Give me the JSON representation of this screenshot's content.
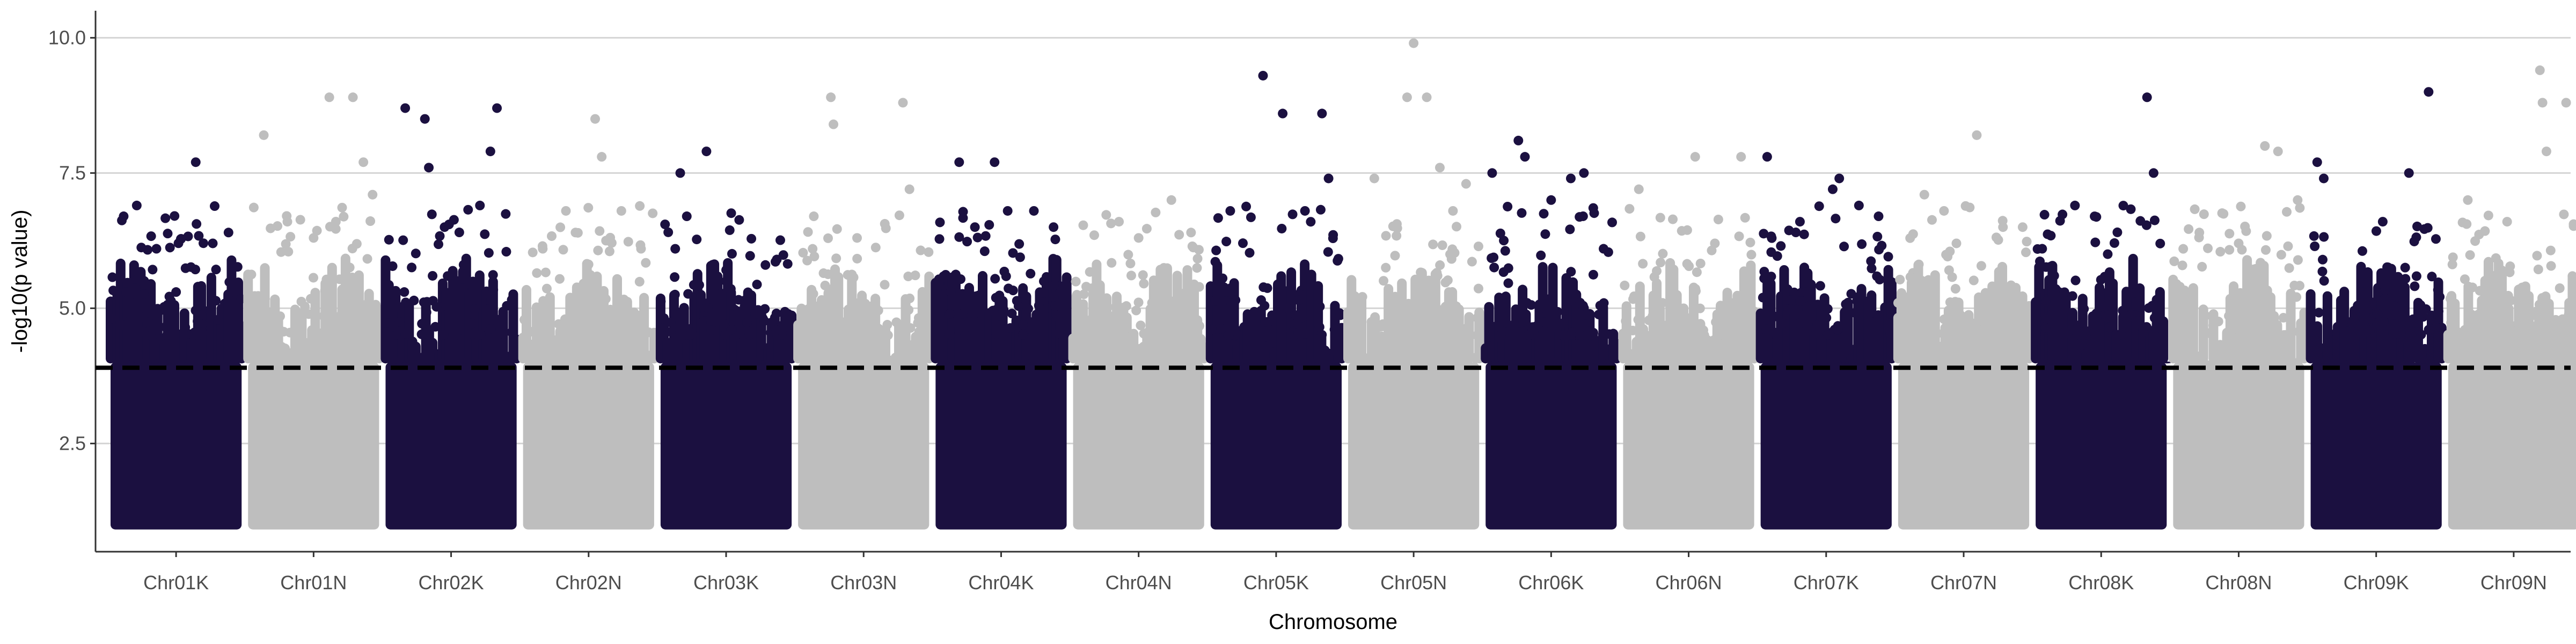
{
  "chart_data": {
    "type": "scatter",
    "subtype": "manhattan",
    "title": "",
    "xlabel": "Chromosome",
    "ylabel": "-log10(p value)",
    "ylim": [
      0.5,
      10.5
    ],
    "yticks": [
      2.5,
      5.0,
      7.5,
      10.0
    ],
    "ytick_labels": [
      "2.5",
      "5.0",
      "7.5",
      "10.0"
    ],
    "grid": "horizontal major",
    "legend": "none",
    "threshold": {
      "value": 3.9,
      "style": "dashed",
      "color": "#000000"
    },
    "colors": {
      "odd": "#1b1040",
      "even": "#bebebe"
    },
    "categories": [
      "Chr01K",
      "Chr01N",
      "Chr02K",
      "Chr02N",
      "Chr03K",
      "Chr03N",
      "Chr04K",
      "Chr04N",
      "Chr05K",
      "Chr05N",
      "Chr06K",
      "Chr06N",
      "Chr07K",
      "Chr07N",
      "Chr08K",
      "Chr08N",
      "Chr09K",
      "Chr09N"
    ],
    "series": [
      {
        "category": "Chr01K",
        "color": "#1b1040",
        "top_points": [
          [
            0.1,
            6.7
          ],
          [
            0.2,
            6.9
          ],
          [
            0.35,
            6.1
          ],
          [
            0.5,
            5.3
          ],
          [
            0.65,
            7.7
          ],
          [
            0.78,
            6.2
          ],
          [
            0.9,
            6.4
          ]
        ]
      },
      {
        "category": "Chr01N",
        "color": "#bebebe",
        "top_points": [
          [
            0.12,
            8.2
          ],
          [
            0.3,
            6.6
          ],
          [
            0.5,
            6.3
          ],
          [
            0.62,
            8.9
          ],
          [
            0.8,
            8.9
          ],
          [
            0.88,
            7.7
          ],
          [
            0.95,
            7.1
          ]
        ]
      },
      {
        "category": "Chr02K",
        "color": "#1b1040",
        "top_points": [
          [
            0.15,
            8.7
          ],
          [
            0.3,
            8.5
          ],
          [
            0.33,
            7.6
          ],
          [
            0.45,
            6.5
          ],
          [
            0.72,
            6.9
          ],
          [
            0.8,
            7.9
          ],
          [
            0.85,
            8.7
          ]
        ]
      },
      {
        "category": "Chr02N",
        "color": "#bebebe",
        "top_points": [
          [
            0.15,
            6.1
          ],
          [
            0.4,
            6.4
          ],
          [
            0.55,
            8.5
          ],
          [
            0.6,
            7.8
          ],
          [
            0.75,
            6.8
          ],
          [
            0.9,
            6.1
          ]
        ]
      },
      {
        "category": "Chr03K",
        "color": "#1b1040",
        "top_points": [
          [
            0.15,
            7.5
          ],
          [
            0.35,
            7.9
          ],
          [
            0.2,
            6.7
          ],
          [
            0.5,
            5.5
          ],
          [
            0.8,
            5.8
          ]
        ]
      },
      {
        "category": "Chr03N",
        "color": "#bebebe",
        "top_points": [
          [
            0.12,
            6.7
          ],
          [
            0.25,
            8.9
          ],
          [
            0.27,
            8.4
          ],
          [
            0.45,
            6.3
          ],
          [
            0.8,
            8.8
          ],
          [
            0.85,
            7.2
          ]
        ]
      },
      {
        "category": "Chr04K",
        "color": "#1b1040",
        "top_points": [
          [
            0.18,
            7.7
          ],
          [
            0.3,
            6.5
          ],
          [
            0.45,
            7.7
          ],
          [
            0.55,
            6.8
          ],
          [
            0.75,
            6.8
          ],
          [
            0.9,
            6.5
          ]
        ]
      },
      {
        "category": "Chr04N",
        "color": "#bebebe",
        "top_points": [
          [
            0.1,
            5.4
          ],
          [
            0.35,
            6.6
          ],
          [
            0.5,
            6.3
          ],
          [
            0.75,
            7.0
          ],
          [
            0.9,
            6.4
          ]
        ]
      },
      {
        "category": "Chr05K",
        "color": "#1b1040",
        "top_points": [
          [
            0.15,
            6.8
          ],
          [
            0.4,
            9.3
          ],
          [
            0.55,
            8.6
          ],
          [
            0.72,
            6.8
          ],
          [
            0.85,
            8.6
          ],
          [
            0.9,
            7.4
          ]
        ]
      },
      {
        "category": "Chr05N",
        "color": "#bebebe",
        "top_points": [
          [
            0.2,
            7.4
          ],
          [
            0.5,
            9.9
          ],
          [
            0.45,
            8.9
          ],
          [
            0.6,
            8.9
          ],
          [
            0.7,
            7.6
          ],
          [
            0.8,
            6.8
          ],
          [
            0.9,
            7.3
          ]
        ]
      },
      {
        "category": "Chr06K",
        "color": "#1b1040",
        "top_points": [
          [
            0.05,
            7.5
          ],
          [
            0.25,
            8.1
          ],
          [
            0.3,
            7.8
          ],
          [
            0.5,
            7.0
          ],
          [
            0.65,
            7.4
          ],
          [
            0.75,
            7.5
          ],
          [
            0.9,
            6.1
          ]
        ]
      },
      {
        "category": "Chr06N",
        "color": "#bebebe",
        "top_points": [
          [
            0.12,
            7.2
          ],
          [
            0.3,
            5.1
          ],
          [
            0.55,
            7.8
          ],
          [
            0.7,
            6.2
          ],
          [
            0.9,
            7.8
          ]
        ]
      },
      {
        "category": "Chr07K",
        "color": "#1b1040",
        "top_points": [
          [
            0.05,
            7.8
          ],
          [
            0.3,
            6.6
          ],
          [
            0.55,
            7.2
          ],
          [
            0.6,
            7.4
          ],
          [
            0.75,
            6.9
          ],
          [
            0.9,
            6.7
          ]
        ]
      },
      {
        "category": "Chr07N",
        "color": "#bebebe",
        "top_points": [
          [
            0.2,
            7.1
          ],
          [
            0.35,
            6.8
          ],
          [
            0.6,
            8.2
          ],
          [
            0.8,
            6.5
          ],
          [
            0.95,
            6.5
          ]
        ]
      },
      {
        "category": "Chr08K",
        "color": "#1b1040",
        "top_points": [
          [
            0.05,
            6.1
          ],
          [
            0.3,
            6.9
          ],
          [
            0.55,
            6.0
          ],
          [
            0.85,
            8.9
          ],
          [
            0.9,
            7.5
          ]
        ]
      },
      {
        "category": "Chr08N",
        "color": "#bebebe",
        "top_points": [
          [
            0.2,
            6.4
          ],
          [
            0.5,
            6.2
          ],
          [
            0.7,
            8.0
          ],
          [
            0.8,
            7.9
          ],
          [
            0.95,
            7.0
          ]
        ]
      },
      {
        "category": "Chr09K",
        "color": "#1b1040",
        "top_points": [
          [
            0.05,
            7.7
          ],
          [
            0.1,
            7.4
          ],
          [
            0.55,
            6.6
          ],
          [
            0.75,
            7.5
          ],
          [
            0.9,
            9.0
          ]
        ]
      },
      {
        "category": "Chr09N",
        "color": "#bebebe",
        "top_points": [
          [
            0.15,
            7.0
          ],
          [
            0.45,
            6.6
          ],
          [
            0.7,
            9.4
          ],
          [
            0.72,
            8.8
          ],
          [
            0.75,
            7.9
          ],
          [
            0.9,
            8.8
          ]
        ]
      }
    ]
  }
}
